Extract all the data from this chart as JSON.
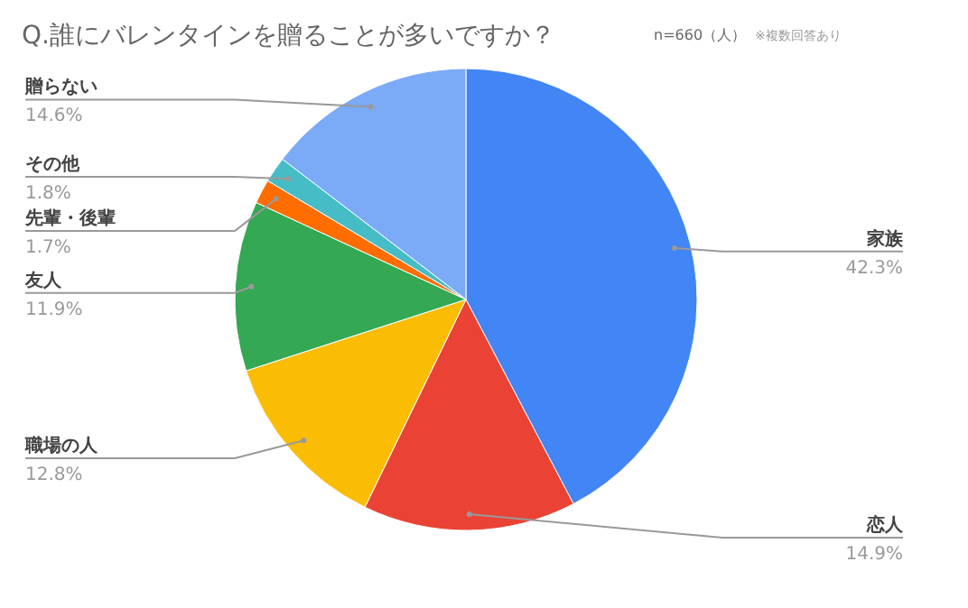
{
  "chart_data": {
    "type": "pie",
    "title": "Q.誰にバレンタインを贈ることが多いですか？",
    "subtitle": "n=660（人）",
    "annotations": [
      "※複数回答あり"
    ],
    "categories": [
      "家族",
      "恋人",
      "職場の人",
      "友人",
      "先輩・後輩",
      "その他",
      "贈らない"
    ],
    "values": [
      42.3,
      14.9,
      12.8,
      11.9,
      1.7,
      1.8,
      14.6
    ],
    "value_labels": [
      "42.3%",
      "14.9%",
      "12.8%",
      "11.9%",
      "1.7%",
      "1.8%",
      "14.6%"
    ],
    "colors": [
      "#4285f4",
      "#ea4335",
      "#fbbc04",
      "#34a853",
      "#ff6d01",
      "#46bdc6",
      "#7baaf7"
    ]
  }
}
